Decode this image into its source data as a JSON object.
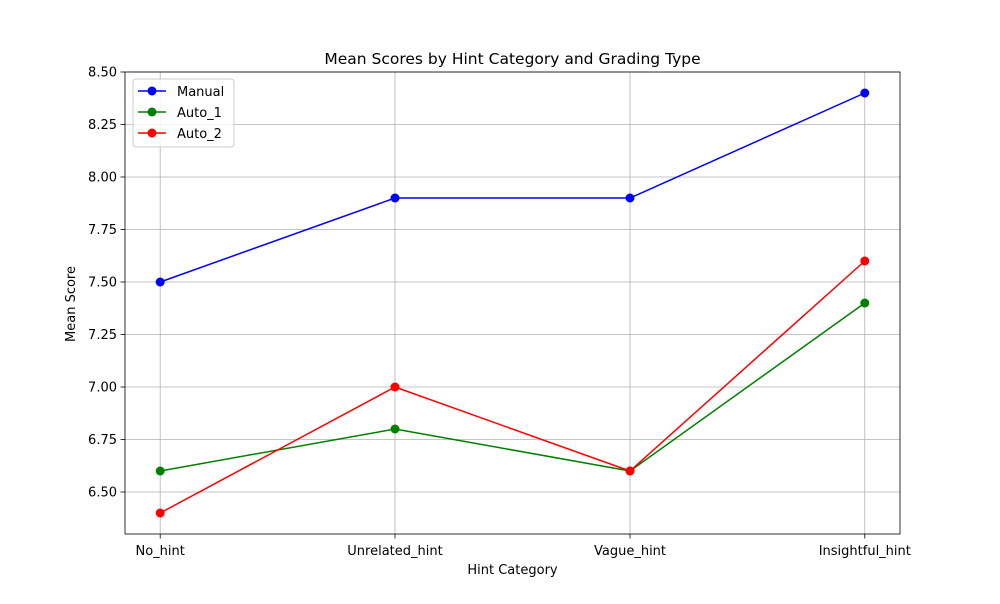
{
  "chart_data": {
    "type": "line",
    "title": "Mean Scores by Hint Category and Grading Type",
    "xlabel": "Hint Category",
    "ylabel": "Mean Score",
    "categories": [
      "No_hint",
      "Unrelated_hint",
      "Vague_hint",
      "Insightful_hint"
    ],
    "ylim": [
      6.3,
      8.5
    ],
    "yticks": [
      6.5,
      6.75,
      7.0,
      7.25,
      7.5,
      7.75,
      8.0,
      8.25,
      8.5
    ],
    "ytick_labels": [
      "6.50",
      "6.75",
      "7.00",
      "7.25",
      "7.50",
      "7.75",
      "8.00",
      "8.25",
      "8.50"
    ],
    "grid": true,
    "legend_position": "top-left",
    "series": [
      {
        "name": "Manual",
        "color": "#0000ff",
        "values": [
          7.5,
          7.9,
          7.9,
          8.4
        ]
      },
      {
        "name": "Auto_1",
        "color": "#008000",
        "values": [
          6.6,
          6.8,
          6.6,
          7.4
        ]
      },
      {
        "name": "Auto_2",
        "color": "#ff0000",
        "values": [
          6.4,
          7.0,
          6.6,
          7.6
        ]
      }
    ]
  }
}
